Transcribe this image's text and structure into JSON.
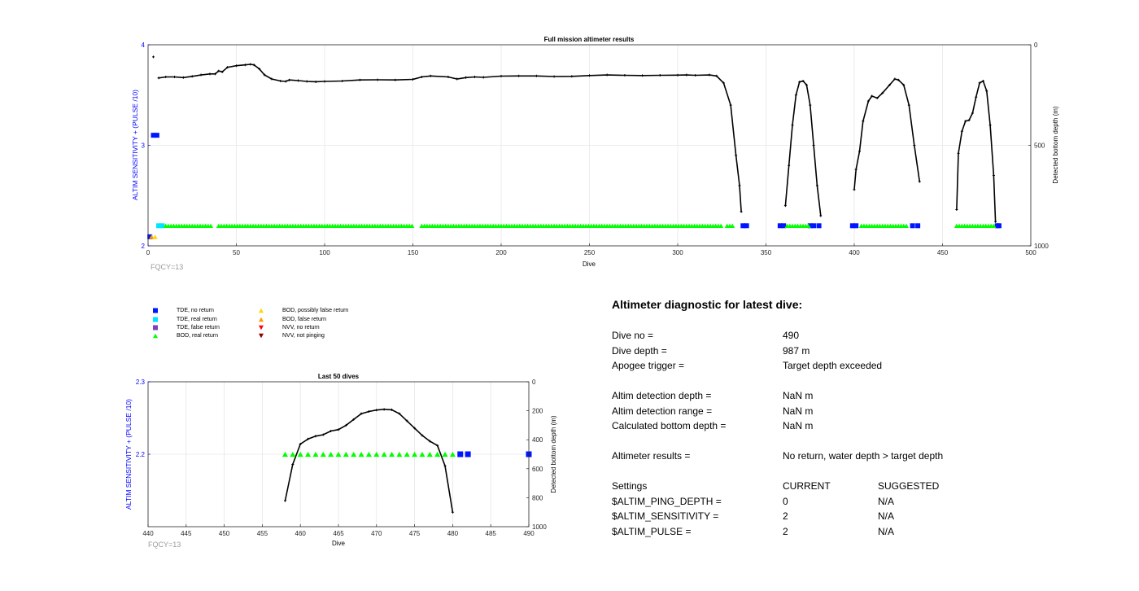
{
  "chart_data": [
    {
      "type": "line",
      "title": "Full mission altimeter results",
      "xlabel": "Dive",
      "ylabel": "ALTIM SENSITIVITY + (PULSE /10)",
      "y2label": "Detected bottom depth (m)",
      "xlim": [
        0,
        500
      ],
      "ylim": [
        2,
        4
      ],
      "y2lim": [
        1000,
        0
      ],
      "x_ticks": [
        "0",
        "50",
        "100",
        "150",
        "200",
        "250",
        "300",
        "350",
        "400",
        "450",
        "500"
      ],
      "y_ticks": [
        "2",
        "3",
        "4"
      ],
      "y2_ticks": [
        "1000",
        "500",
        "0"
      ],
      "grid": true,
      "note": "FQCY=13",
      "series": [
        {
          "name": "Detected bottom depth",
          "axis": "right",
          "color": "#000000",
          "segments": [
            [
              [
                3,
                60
              ]
            ],
            [
              [
                6,
                165
              ],
              [
                10,
                160
              ],
              [
                15,
                160
              ],
              [
                20,
                163
              ],
              [
                25,
                157
              ],
              [
                30,
                150
              ],
              [
                35,
                145
              ],
              [
                38,
                145
              ],
              [
                40,
                130
              ],
              [
                42,
                135
              ],
              [
                45,
                112
              ],
              [
                50,
                104
              ],
              [
                55,
                100
              ],
              [
                58,
                97
              ],
              [
                60,
                100
              ],
              [
                63,
                120
              ],
              [
                66,
                150
              ],
              [
                70,
                170
              ],
              [
                75,
                180
              ],
              [
                78,
                182
              ],
              [
                80,
                175
              ],
              [
                85,
                178
              ],
              [
                90,
                182
              ],
              [
                95,
                184
              ],
              [
                100,
                182
              ],
              [
                110,
                180
              ],
              [
                120,
                175
              ],
              [
                130,
                174
              ],
              [
                140,
                175
              ],
              [
                150,
                172
              ],
              [
                155,
                160
              ],
              [
                160,
                155
              ],
              [
                170,
                160
              ],
              [
                175,
                170
              ],
              [
                180,
                163
              ],
              [
                185,
                160
              ],
              [
                190,
                162
              ],
              [
                200,
                156
              ],
              [
                210,
                155
              ],
              [
                220,
                155
              ],
              [
                230,
                158
              ],
              [
                240,
                157
              ],
              [
                250,
                153
              ],
              [
                260,
                150
              ],
              [
                270,
                152
              ],
              [
                280,
                153
              ],
              [
                290,
                152
              ],
              [
                300,
                151
              ],
              [
                305,
                150
              ],
              [
                310,
                152
              ],
              [
                318,
                150
              ],
              [
                322,
                155
              ],
              [
                326,
                190
              ],
              [
                330,
                300
              ],
              [
                333,
                550
              ],
              [
                335,
                700
              ],
              [
                336,
                830
              ]
            ],
            [
              [
                361,
                800
              ],
              [
                363,
                600
              ],
              [
                365,
                400
              ],
              [
                367,
                250
              ],
              [
                369,
                185
              ],
              [
                371,
                180
              ],
              [
                373,
                200
              ],
              [
                375,
                300
              ],
              [
                377,
                500
              ],
              [
                379,
                700
              ],
              [
                381,
                850
              ]
            ],
            [
              [
                400,
                720
              ],
              [
                401,
                620
              ],
              [
                403,
                530
              ],
              [
                405,
                380
              ],
              [
                408,
                280
              ],
              [
                410,
                255
              ],
              [
                413,
                265
              ],
              [
                416,
                240
              ],
              [
                420,
                200
              ],
              [
                423,
                170
              ],
              [
                425,
                175
              ],
              [
                428,
                200
              ],
              [
                431,
                300
              ],
              [
                434,
                500
              ],
              [
                437,
                680
              ]
            ],
            [
              [
                458,
                820
              ],
              [
                459,
                540
              ],
              [
                461,
                430
              ],
              [
                463,
                380
              ],
              [
                465,
                375
              ],
              [
                467,
                340
              ],
              [
                469,
                260
              ],
              [
                471,
                190
              ],
              [
                473,
                180
              ],
              [
                475,
                230
              ],
              [
                477,
                400
              ],
              [
                479,
                650
              ],
              [
                480,
                880
              ]
            ]
          ]
        },
        {
          "name": "TDE, no return",
          "marker": "square",
          "color": "#0015ff",
          "points": [
            [
              1,
              2.09
            ],
            [
              3,
              3.1
            ],
            [
              5,
              3.1
            ],
            [
              337,
              2.2
            ],
            [
              339,
              2.2
            ],
            [
              358,
              2.2
            ],
            [
              360,
              2.2
            ],
            [
              375,
              2.2
            ],
            [
              377,
              2.2
            ],
            [
              380,
              2.2
            ],
            [
              399,
              2.2
            ],
            [
              401,
              2.2
            ],
            [
              433,
              2.2
            ],
            [
              436,
              2.2
            ],
            [
              481,
              2.2
            ],
            [
              482,
              2.2
            ]
          ]
        },
        {
          "name": "TDE, real return",
          "marker": "square",
          "color": "#00e5ff",
          "points": [
            [
              6,
              2.2
            ],
            [
              8,
              2.2
            ]
          ]
        },
        {
          "name": "BOD, real return",
          "marker": "triangle-up",
          "color": "#00ff00",
          "ranges": [
            [
              10,
              36
            ],
            [
              40,
              150
            ],
            [
              155,
              325
            ],
            [
              328,
              332
            ],
            [
              362,
              374
            ],
            [
              404,
              430
            ],
            [
              458,
              479
            ]
          ]
        },
        {
          "name": "BOD, possibly false return",
          "marker": "triangle-up",
          "color": "#ffd700",
          "points": [
            [
              4,
              2.09
            ]
          ]
        },
        {
          "name": "BOD, false return",
          "marker": "triangle-up",
          "color": "#ff9900",
          "points": [
            [
              2,
              2.09
            ]
          ]
        }
      ]
    },
    {
      "type": "line",
      "title": "Last 50 dives",
      "xlabel": "Dive",
      "ylabel": "ALTIM SENSITIVITY + (PULSE /10)",
      "y2label": "Detected bottom depth (m)",
      "xlim": [
        440,
        490
      ],
      "ylim": [
        2.1,
        2.3
      ],
      "y2lim": [
        1000,
        0
      ],
      "x_ticks": [
        "440",
        "445",
        "450",
        "455",
        "460",
        "465",
        "470",
        "475",
        "480",
        "485",
        "490"
      ],
      "y_ticks": [
        "2.2",
        "2.3"
      ],
      "y2_ticks": [
        "1000",
        "800",
        "600",
        "400",
        "200",
        "0"
      ],
      "grid": true,
      "note": "FQCY=13",
      "series": [
        {
          "name": "Detected bottom depth",
          "axis": "right",
          "color": "#000000",
          "points": [
            [
              458,
              820
            ],
            [
              459,
              570
            ],
            [
              460,
              430
            ],
            [
              461,
              395
            ],
            [
              462,
              375
            ],
            [
              463,
              365
            ],
            [
              464,
              340
            ],
            [
              465,
              330
            ],
            [
              466,
              300
            ],
            [
              467,
              260
            ],
            [
              468,
              220
            ],
            [
              469,
              205
            ],
            [
              470,
              195
            ],
            [
              471,
              190
            ],
            [
              472,
              193
            ],
            [
              473,
              220
            ],
            [
              474,
              270
            ],
            [
              475,
              320
            ],
            [
              476,
              370
            ],
            [
              477,
              410
            ],
            [
              478,
              440
            ],
            [
              479,
              580
            ],
            [
              480,
              900
            ]
          ]
        },
        {
          "name": "BOD, real return",
          "marker": "triangle-up",
          "color": "#00ff00",
          "points": [
            [
              458,
              2.2
            ],
            [
              459,
              2.2
            ],
            [
              460,
              2.2
            ],
            [
              461,
              2.2
            ],
            [
              462,
              2.2
            ],
            [
              463,
              2.2
            ],
            [
              464,
              2.2
            ],
            [
              465,
              2.2
            ],
            [
              466,
              2.2
            ],
            [
              467,
              2.2
            ],
            [
              468,
              2.2
            ],
            [
              469,
              2.2
            ],
            [
              470,
              2.2
            ],
            [
              471,
              2.2
            ],
            [
              472,
              2.2
            ],
            [
              473,
              2.2
            ],
            [
              474,
              2.2
            ],
            [
              475,
              2.2
            ],
            [
              476,
              2.2
            ],
            [
              477,
              2.2
            ],
            [
              478,
              2.2
            ],
            [
              479,
              2.2
            ],
            [
              480,
              2.2
            ]
          ]
        },
        {
          "name": "TDE, no return",
          "marker": "square",
          "color": "#0015ff",
          "points": [
            [
              481,
              2.2
            ],
            [
              482,
              2.2
            ],
            [
              490,
              2.2
            ]
          ]
        }
      ]
    }
  ],
  "legend": {
    "items": [
      {
        "label": "TDE, no return",
        "marker": "square",
        "color": "#0015ff"
      },
      {
        "label": "TDE, real return",
        "marker": "square",
        "color": "#00e5ff"
      },
      {
        "label": "TDE, false return",
        "marker": "square",
        "color": "#7f3fbf"
      },
      {
        "label": "BOD, real return",
        "marker": "triangle-up",
        "color": "#00ff00"
      },
      {
        "label": "BOD, possibly false return",
        "marker": "triangle-up",
        "color": "#ffd700"
      },
      {
        "label": "BOD, false return",
        "marker": "triangle-up",
        "color": "#ff9900"
      },
      {
        "label": "NVV, no return",
        "marker": "triangle-down",
        "color": "#ff0000"
      },
      {
        "label": "NVV, not pinging",
        "marker": "triangle-down",
        "color": "#8b0000"
      }
    ]
  },
  "colors": {
    "left_axis": "#0000ff",
    "note": "#9a9a9a",
    "grid": "#e6e6e6"
  },
  "diagnostic": {
    "title": "Altimeter diagnostic for latest dive:",
    "dive_no_label": "Dive no =",
    "dive_no_value": "490",
    "dive_depth_label": "Dive depth =",
    "dive_depth_value": "987 m",
    "apogee_label": "Apogee trigger =",
    "apogee_value": "Target depth exceeded",
    "detection_depth_label": "Altim detection depth =",
    "detection_depth_value": "NaN m",
    "detection_range_label": "Altim detection range =",
    "detection_range_value": "NaN m",
    "bottom_depth_label": "Calculated bottom depth =",
    "bottom_depth_value": "NaN m",
    "results_label": "Altimeter results =",
    "results_value": "No return, water depth > target depth",
    "settings_label": "Settings",
    "current_header": "CURRENT",
    "suggested_header": "SUGGESTED",
    "settings": [
      {
        "name": "$ALTIM_PING_DEPTH =",
        "current": "0",
        "suggested": "N/A"
      },
      {
        "name": "$ALTIM_SENSITIVITY =",
        "current": "2",
        "suggested": "N/A"
      },
      {
        "name": "$ALTIM_PULSE =",
        "current": "2",
        "suggested": "N/A"
      }
    ]
  }
}
